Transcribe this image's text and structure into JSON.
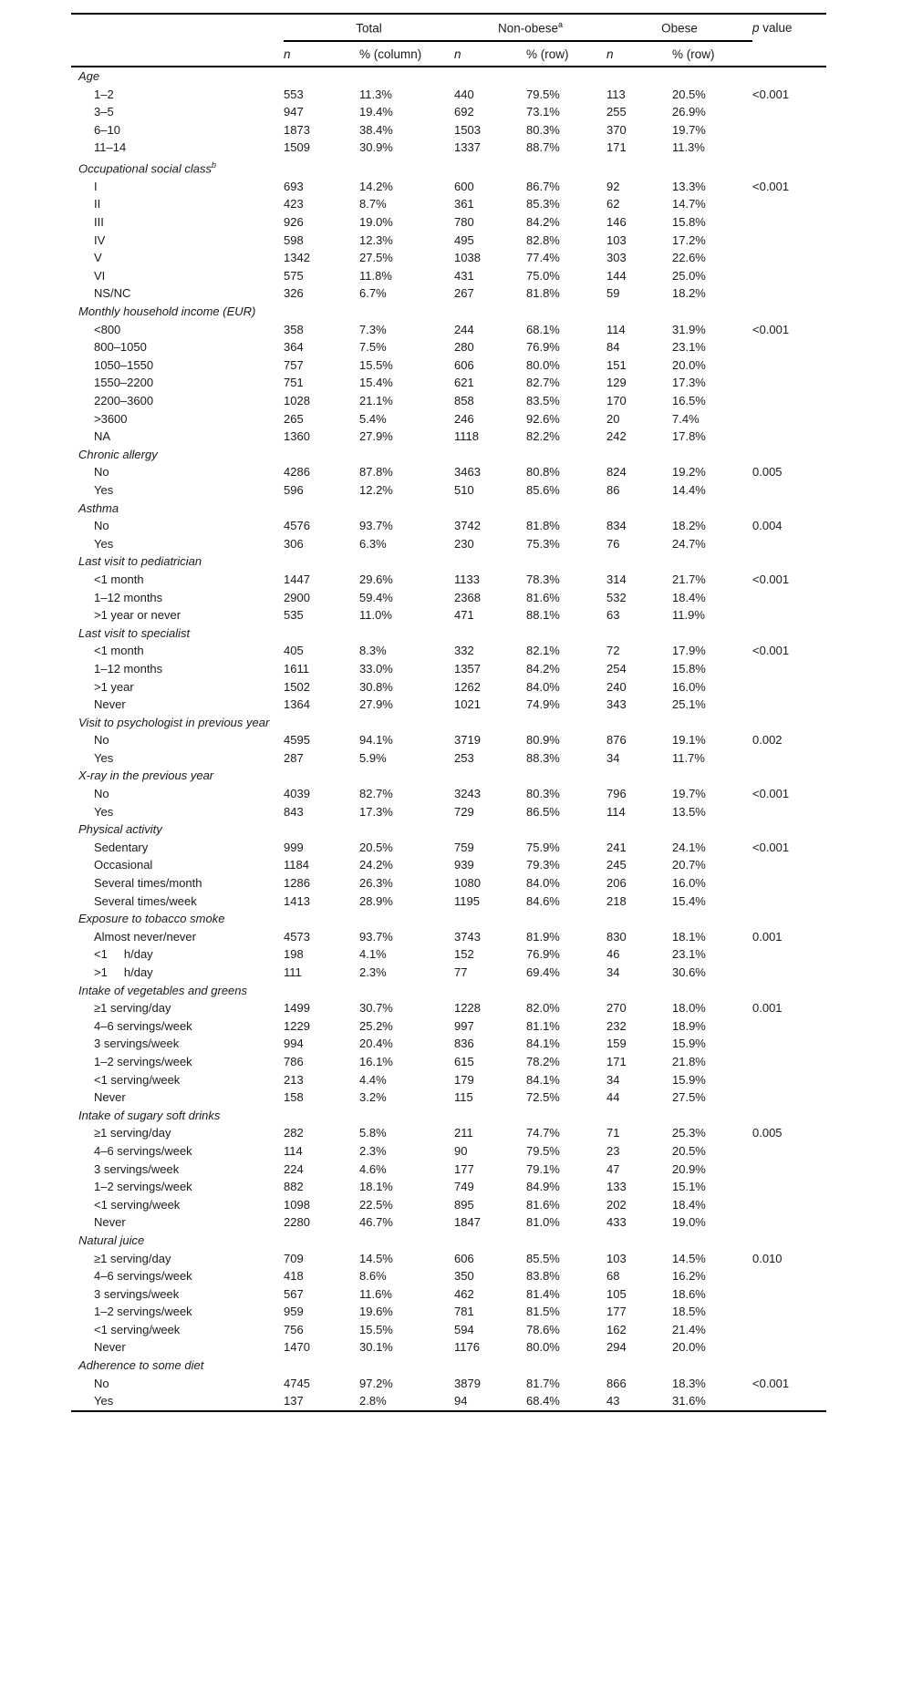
{
  "page": {
    "background": "#ffffff",
    "text_color": "#1a1a1a",
    "rule_color": "#000000"
  },
  "table": {
    "header": {
      "groups": [
        {
          "label": "Total",
          "sub_n": "n",
          "sub_pct": "% (column)"
        },
        {
          "label": "Non-obese",
          "sup": "a",
          "sub_n": "n",
          "sub_pct": "% (row)"
        },
        {
          "label": "Obese",
          "sub_n": "n",
          "sub_pct": "% (row)"
        }
      ],
      "p_label_italic": "p",
      "p_label_rest": " value"
    },
    "sections": [
      {
        "title": "Age",
        "rows": [
          {
            "label": "1–2",
            "values": [
              "553",
              "11.3%",
              "440",
              "79.5%",
              "113",
              "20.5%"
            ],
            "p": "<0.001"
          },
          {
            "label": "3–5",
            "values": [
              "947",
              "19.4%",
              "692",
              "73.1%",
              "255",
              "26.9%"
            ],
            "p": ""
          },
          {
            "label": "6–10",
            "values": [
              "1873",
              "38.4%",
              "1503",
              "80.3%",
              "370",
              "19.7%"
            ],
            "p": ""
          },
          {
            "label": "11–14",
            "values": [
              "1509",
              "30.9%",
              "1337",
              "88.7%",
              "171",
              "11.3%"
            ],
            "p": ""
          }
        ]
      },
      {
        "title": "Occupational social class",
        "sup": "b",
        "rows": [
          {
            "label": "I",
            "values": [
              "693",
              "14.2%",
              "600",
              "86.7%",
              "92",
              "13.3%"
            ],
            "p": "<0.001"
          },
          {
            "label": "II",
            "values": [
              "423",
              "8.7%",
              "361",
              "85.3%",
              "62",
              "14.7%"
            ],
            "p": ""
          },
          {
            "label": "III",
            "values": [
              "926",
              "19.0%",
              "780",
              "84.2%",
              "146",
              "15.8%"
            ],
            "p": ""
          },
          {
            "label": "IV",
            "values": [
              "598",
              "12.3%",
              "495",
              "82.8%",
              "103",
              "17.2%"
            ],
            "p": ""
          },
          {
            "label": "V",
            "values": [
              "1342",
              "27.5%",
              "1038",
              "77.4%",
              "303",
              "22.6%"
            ],
            "p": ""
          },
          {
            "label": "VI",
            "values": [
              "575",
              "11.8%",
              "431",
              "75.0%",
              "144",
              "25.0%"
            ],
            "p": ""
          },
          {
            "label": "NS/NC",
            "values": [
              "326",
              "6.7%",
              "267",
              "81.8%",
              "59",
              "18.2%"
            ],
            "p": ""
          }
        ]
      },
      {
        "title": "Monthly household income (EUR)",
        "rows": [
          {
            "label": "<800",
            "values": [
              "358",
              "7.3%",
              "244",
              "68.1%",
              "114",
              "31.9%"
            ],
            "p": "<0.001"
          },
          {
            "label": "800–1050",
            "values": [
              "364",
              "7.5%",
              "280",
              "76.9%",
              "84",
              "23.1%"
            ],
            "p": ""
          },
          {
            "label": "1050–1550",
            "values": [
              "757",
              "15.5%",
              "606",
              "80.0%",
              "151",
              "20.0%"
            ],
            "p": ""
          },
          {
            "label": "1550–2200",
            "values": [
              "751",
              "15.4%",
              "621",
              "82.7%",
              "129",
              "17.3%"
            ],
            "p": ""
          },
          {
            "label": "2200–3600",
            "values": [
              "1028",
              "21.1%",
              "858",
              "83.5%",
              "170",
              "16.5%"
            ],
            "p": ""
          },
          {
            "label": ">3600",
            "values": [
              "265",
              "5.4%",
              "246",
              "92.6%",
              "20",
              "7.4%"
            ],
            "p": ""
          },
          {
            "label": "NA",
            "values": [
              "1360",
              "27.9%",
              "1118",
              "82.2%",
              "242",
              "17.8%"
            ],
            "p": ""
          }
        ]
      },
      {
        "title": "Chronic allergy",
        "rows": [
          {
            "label": "No",
            "values": [
              "4286",
              "87.8%",
              "3463",
              "80.8%",
              "824",
              "19.2%"
            ],
            "p": "0.005"
          },
          {
            "label": "Yes",
            "values": [
              "596",
              "12.2%",
              "510",
              "85.6%",
              "86",
              "14.4%"
            ],
            "p": ""
          }
        ]
      },
      {
        "title": "Asthma",
        "rows": [
          {
            "label": "No",
            "values": [
              "4576",
              "93.7%",
              "3742",
              "81.8%",
              "834",
              "18.2%"
            ],
            "p": "0.004"
          },
          {
            "label": "Yes",
            "values": [
              "306",
              "6.3%",
              "230",
              "75.3%",
              "76",
              "24.7%"
            ],
            "p": ""
          }
        ]
      },
      {
        "title": "Last visit to pediatrician",
        "rows": [
          {
            "label": "<1 month",
            "values": [
              "1447",
              "29.6%",
              "1133",
              "78.3%",
              "314",
              "21.7%"
            ],
            "p": "<0.001"
          },
          {
            "label": "1–12 months",
            "values": [
              "2900",
              "59.4%",
              "2368",
              "81.6%",
              "532",
              "18.4%"
            ],
            "p": ""
          },
          {
            "label": ">1 year or never",
            "values": [
              "535",
              "11.0%",
              "471",
              "88.1%",
              "63",
              "11.9%"
            ],
            "p": ""
          }
        ]
      },
      {
        "title": "Last visit to specialist",
        "rows": [
          {
            "label": "<1 month",
            "values": [
              "405",
              "8.3%",
              "332",
              "82.1%",
              "72",
              "17.9%"
            ],
            "p": "<0.001"
          },
          {
            "label": "1–12 months",
            "values": [
              "1611",
              "33.0%",
              "1357",
              "84.2%",
              "254",
              "15.8%"
            ],
            "p": ""
          },
          {
            "label": ">1 year",
            "values": [
              "1502",
              "30.8%",
              "1262",
              "84.0%",
              "240",
              "16.0%"
            ],
            "p": ""
          },
          {
            "label": "Never",
            "values": [
              "1364",
              "27.9%",
              "1021",
              "74.9%",
              "343",
              "25.1%"
            ],
            "p": ""
          }
        ]
      },
      {
        "title": "Visit to psychologist in previous year",
        "rows": [
          {
            "label": "No",
            "values": [
              "4595",
              "94.1%",
              "3719",
              "80.9%",
              "876",
              "19.1%"
            ],
            "p": "0.002"
          },
          {
            "label": "Yes",
            "values": [
              "287",
              "5.9%",
              "253",
              "88.3%",
              "34",
              "11.7%"
            ],
            "p": ""
          }
        ]
      },
      {
        "title": "X-ray in the previous year",
        "rows": [
          {
            "label": "No",
            "values": [
              "4039",
              "82.7%",
              "3243",
              "80.3%",
              "796",
              "19.7%"
            ],
            "p": "<0.001"
          },
          {
            "label": "Yes",
            "values": [
              "843",
              "17.3%",
              "729",
              "86.5%",
              "114",
              "13.5%"
            ],
            "p": ""
          }
        ]
      },
      {
        "title": "Physical activity",
        "rows": [
          {
            "label": "Sedentary",
            "values": [
              "999",
              "20.5%",
              "759",
              "75.9%",
              "241",
              "24.1%"
            ],
            "p": "<0.001"
          },
          {
            "label": "Occasional",
            "values": [
              "1184",
              "24.2%",
              "939",
              "79.3%",
              "245",
              "20.7%"
            ],
            "p": ""
          },
          {
            "label": "Several times/month",
            "values": [
              "1286",
              "26.3%",
              "1080",
              "84.0%",
              "206",
              "16.0%"
            ],
            "p": ""
          },
          {
            "label": "Several times/week",
            "values": [
              "1413",
              "28.9%",
              "1195",
              "84.6%",
              "218",
              "15.4%"
            ],
            "p": ""
          }
        ]
      },
      {
        "title": "Exposure to tobacco smoke",
        "rows": [
          {
            "label": "Almost never/never",
            "values": [
              "4573",
              "93.7%",
              "3743",
              "81.9%",
              "830",
              "18.1%"
            ],
            "p": "0.001"
          },
          {
            "label": "<1     h/day",
            "values": [
              "198",
              "4.1%",
              "152",
              "76.9%",
              "46",
              "23.1%"
            ],
            "p": ""
          },
          {
            "label": ">1     h/day",
            "values": [
              "111",
              "2.3%",
              "77",
              "69.4%",
              "34",
              "30.6%"
            ],
            "p": ""
          }
        ]
      },
      {
        "title": "Intake of vegetables and greens",
        "rows": [
          {
            "label": "≥1 serving/day",
            "values": [
              "1499",
              "30.7%",
              "1228",
              "82.0%",
              "270",
              "18.0%"
            ],
            "p": "0.001"
          },
          {
            "label": "4–6 servings/week",
            "values": [
              "1229",
              "25.2%",
              "997",
              "81.1%",
              "232",
              "18.9%"
            ],
            "p": ""
          },
          {
            "label": "3 servings/week",
            "values": [
              "994",
              "20.4%",
              "836",
              "84.1%",
              "159",
              "15.9%"
            ],
            "p": ""
          },
          {
            "label": "1–2 servings/week",
            "values": [
              "786",
              "16.1%",
              "615",
              "78.2%",
              "171",
              "21.8%"
            ],
            "p": ""
          },
          {
            "label": "<1 serving/week",
            "values": [
              "213",
              "4.4%",
              "179",
              "84.1%",
              "34",
              "15.9%"
            ],
            "p": ""
          },
          {
            "label": "Never",
            "values": [
              "158",
              "3.2%",
              "115",
              "72.5%",
              "44",
              "27.5%"
            ],
            "p": ""
          }
        ]
      },
      {
        "title": "Intake of sugary soft drinks",
        "rows": [
          {
            "label": "≥1 serving/day",
            "values": [
              "282",
              "5.8%",
              "211",
              "74.7%",
              "71",
              "25.3%"
            ],
            "p": "0.005"
          },
          {
            "label": "4–6 servings/week",
            "values": [
              "114",
              "2.3%",
              "90",
              "79.5%",
              "23",
              "20.5%"
            ],
            "p": ""
          },
          {
            "label": "3 servings/week",
            "values": [
              "224",
              "4.6%",
              "177",
              "79.1%",
              "47",
              "20.9%"
            ],
            "p": ""
          },
          {
            "label": "1–2 servings/week",
            "values": [
              "882",
              "18.1%",
              "749",
              "84.9%",
              "133",
              "15.1%"
            ],
            "p": ""
          },
          {
            "label": "<1 serving/week",
            "values": [
              "1098",
              "22.5%",
              "895",
              "81.6%",
              "202",
              "18.4%"
            ],
            "p": ""
          },
          {
            "label": "Never",
            "values": [
              "2280",
              "46.7%",
              "1847",
              "81.0%",
              "433",
              "19.0%"
            ],
            "p": ""
          }
        ]
      },
      {
        "title": "Natural juice",
        "rows": [
          {
            "label": "≥1 serving/day",
            "values": [
              "709",
              "14.5%",
              "606",
              "85.5%",
              "103",
              "14.5%"
            ],
            "p": "0.010"
          },
          {
            "label": "4–6 servings/week",
            "values": [
              "418",
              "8.6%",
              "350",
              "83.8%",
              "68",
              "16.2%"
            ],
            "p": ""
          },
          {
            "label": "3 servings/week",
            "values": [
              "567",
              "11.6%",
              "462",
              "81.4%",
              "105",
              "18.6%"
            ],
            "p": ""
          },
          {
            "label": "1–2 servings/week",
            "values": [
              "959",
              "19.6%",
              "781",
              "81.5%",
              "177",
              "18.5%"
            ],
            "p": ""
          },
          {
            "label": "<1 serving/week",
            "values": [
              "756",
              "15.5%",
              "594",
              "78.6%",
              "162",
              "21.4%"
            ],
            "p": ""
          },
          {
            "label": "Never",
            "values": [
              "1470",
              "30.1%",
              "1176",
              "80.0%",
              "294",
              "20.0%"
            ],
            "p": ""
          }
        ]
      },
      {
        "title": "Adherence to some diet",
        "rows": [
          {
            "label": "No",
            "values": [
              "4745",
              "97.2%",
              "3879",
              "81.7%",
              "866",
              "18.3%"
            ],
            "p": "<0.001"
          },
          {
            "label": "Yes",
            "values": [
              "137",
              "2.8%",
              "94",
              "68.4%",
              "43",
              "31.6%"
            ],
            "p": ""
          }
        ]
      }
    ]
  }
}
